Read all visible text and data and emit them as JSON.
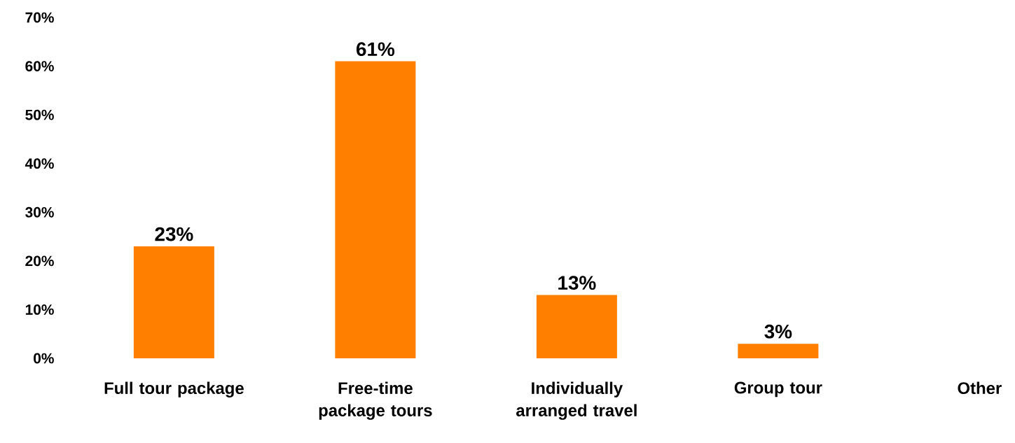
{
  "chart_data": {
    "type": "bar",
    "categories": [
      "Full tour package",
      "Free-time package tours",
      "Individually arranged travel",
      "Group tour",
      "Other"
    ],
    "values": [
      23,
      61,
      13,
      3,
      null
    ],
    "value_labels": [
      "23%",
      "61%",
      "13%",
      "3%",
      null
    ],
    "color": "#ff8000",
    "ylim": [
      0,
      70
    ],
    "yticks": [
      {
        "value": 0,
        "label": "0%"
      },
      {
        "value": 10,
        "label": "10%"
      },
      {
        "value": 20,
        "label": "20%"
      },
      {
        "value": 30,
        "label": "30%"
      },
      {
        "value": 40,
        "label": "40%"
      },
      {
        "value": 50,
        "label": "50%"
      },
      {
        "value": 60,
        "label": "60%"
      },
      {
        "value": 70,
        "label": "70%"
      }
    ],
    "grid": false
  }
}
